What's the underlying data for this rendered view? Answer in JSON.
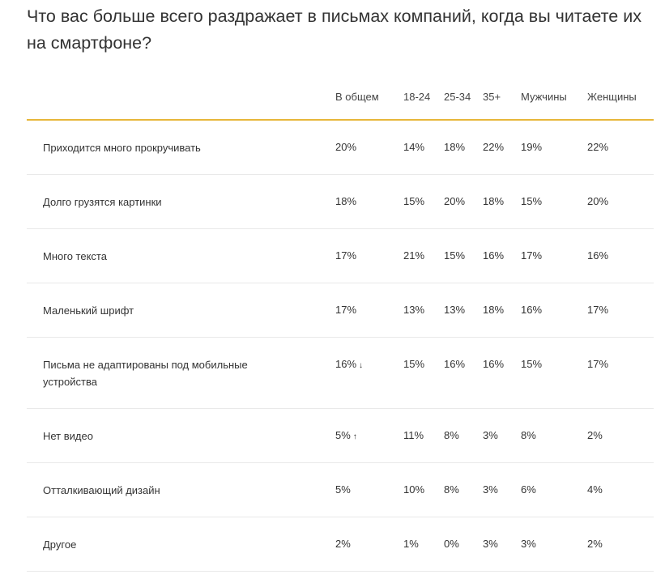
{
  "title": "Что вас больше всего раздражает в письмах компаний, когда вы читаете их на смартфоне?",
  "header": [
    "В общем",
    "18-24",
    "25-34",
    "35+",
    "Мужчины",
    "Женщины"
  ],
  "rows": [
    {
      "label": "Приходится много прокручивать",
      "values": [
        "20%",
        "14%",
        "18%",
        "22%",
        "19%",
        "22%"
      ],
      "trend": ""
    },
    {
      "label": "Долго грузятся картинки",
      "values": [
        "18%",
        "15%",
        "20%",
        "18%",
        "15%",
        "20%"
      ],
      "trend": ""
    },
    {
      "label": "Много текста",
      "values": [
        "17%",
        "21%",
        "15%",
        "16%",
        "17%",
        "16%"
      ],
      "trend": ""
    },
    {
      "label": "Маленький шрифт",
      "values": [
        "17%",
        "13%",
        "13%",
        "18%",
        "16%",
        "17%"
      ],
      "trend": ""
    },
    {
      "label": "Письма не адаптированы под мобильные устройства",
      "values": [
        "16%",
        "15%",
        "16%",
        "16%",
        "15%",
        "17%"
      ],
      "trend": "down-arrow-icon"
    },
    {
      "label": "Нет видео",
      "values": [
        "5%",
        "11%",
        "8%",
        "3%",
        "8%",
        "2%"
      ],
      "trend": "up-arrow-icon"
    },
    {
      "label": "Отталкивающий дизайн",
      "values": [
        "5%",
        "10%",
        "8%",
        "3%",
        "6%",
        "4%"
      ],
      "trend": ""
    },
    {
      "label": "Другое",
      "values": [
        "2%",
        "1%",
        "0%",
        "3%",
        "3%",
        "2%"
      ],
      "trend": ""
    }
  ],
  "accent_color": "#e7b73a"
}
